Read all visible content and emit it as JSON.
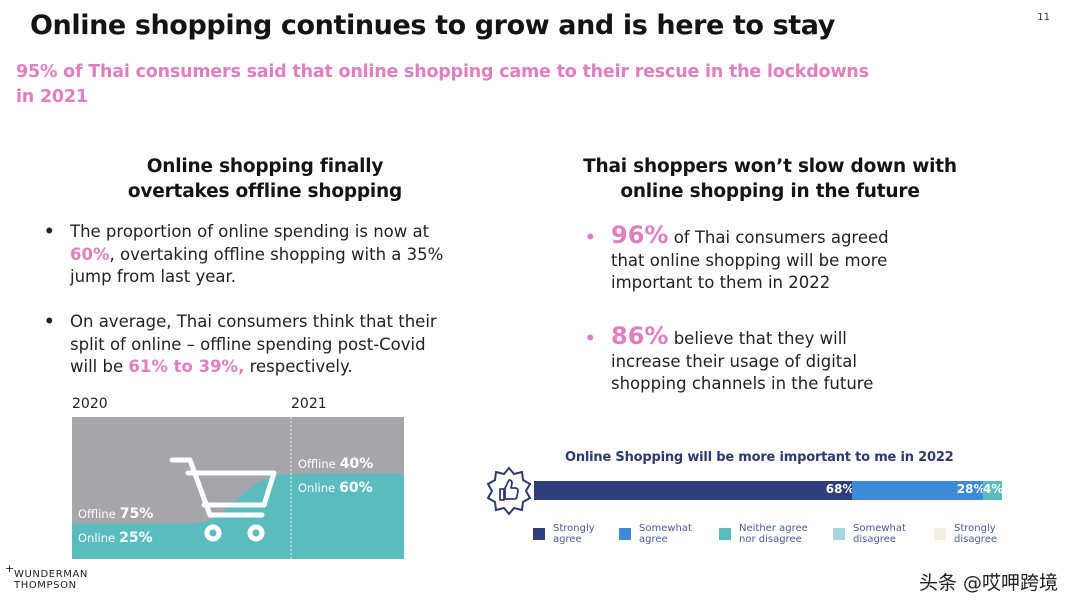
{
  "page": {
    "title": "Online shopping continues to grow and is here to stay",
    "page_number": "11",
    "subtitle_line1": "95% of Thai consumers said that online shopping came to their rescue in the lockdowns",
    "subtitle_line2": "in 2021"
  },
  "left": {
    "heading_line1": "Online shopping finally",
    "heading_line2": "overtakes offline shopping",
    "bullet1": {
      "line1": "The proportion of online spending is now at",
      "highlight": "60%",
      "line2_rest": ", overtaking offline shopping with a 35%",
      "line3": "jump from last year."
    },
    "bullet2": {
      "line1": "On average, Thai consumers think that their",
      "line2": "split of online – offline spending post-Covid",
      "line3_start": "will be ",
      "highlight": "61% to 39%,",
      "line3_end": " respectively."
    },
    "year_2020": "2020",
    "year_2021": "2021",
    "offline_label": "Offline",
    "online_label": "Online",
    "offline_2020": "75%",
    "online_2020": "25%",
    "offline_2021": "40%",
    "online_2021": "60%",
    "online_2020_share": 25,
    "online_2021_share": 60,
    "colors": {
      "offline": "#a6a5ab",
      "online": "#5bbcc0"
    },
    "cart_icon": "shopping-cart-icon"
  },
  "right": {
    "heading_line1": "Thai shoppers won’t slow down with",
    "heading_line2": "online shopping in the future",
    "stat1": {
      "value": "96%",
      "line1_rest": " of Thai consumers agreed",
      "line2": "that online shopping will be more",
      "line3": "important to them in 2022"
    },
    "stat2": {
      "value": "86%",
      "line1_rest": " believe that they will",
      "line2": "increase their usage of digital",
      "line3": "shopping channels in the future"
    }
  },
  "chart_data": {
    "type": "bar",
    "title": "Online Shopping will be more important to me in 2022",
    "categories": [
      "Online Shopping will be more important to me in 2022"
    ],
    "series": [
      {
        "name": "Strongly agree",
        "values": [
          68
        ],
        "label": "68%",
        "color": "#2e3f7c"
      },
      {
        "name": "Somewhat agree",
        "values": [
          28
        ],
        "label": "28%",
        "color": "#3f8ad8"
      },
      {
        "name": "Neither agree nor disagree",
        "values": [
          4
        ],
        "label": "4%",
        "color": "#5bbcc0"
      },
      {
        "name": "Somewhat disagree",
        "values": [
          0
        ],
        "label": "",
        "color": "#a9d7e0"
      },
      {
        "name": "Strongly disagree",
        "values": [
          0
        ],
        "label": "",
        "color": "#f3ede0"
      }
    ],
    "legend": [
      {
        "line1": "Strongly",
        "line2": "agree"
      },
      {
        "line1": "Somewhat",
        "line2": "agree"
      },
      {
        "line1": "Neither agree",
        "line2": "nor disagree"
      },
      {
        "line1": "Somewhat",
        "line2": "disagree"
      },
      {
        "line1": "Strongly",
        "line2": "disagree"
      }
    ],
    "badge_icon": "thumbs-up-icon",
    "legend_position": "bottom"
  },
  "footer": {
    "logo_line1": "WUNDERMAN",
    "logo_line2": "THOMPSON",
    "watermark": "头条 @哎呷跨境"
  }
}
